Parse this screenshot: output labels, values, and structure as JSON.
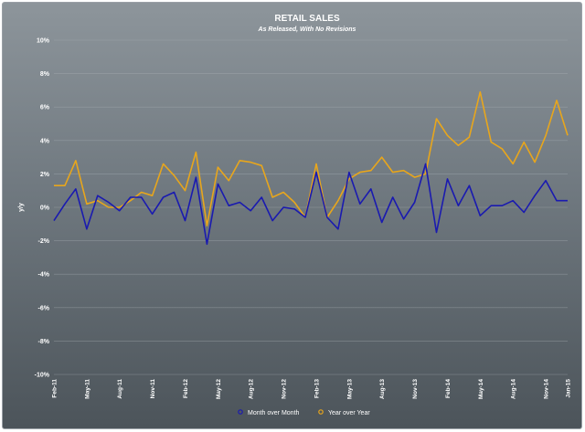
{
  "chart_data": {
    "type": "line",
    "title": "RETAIL SALES",
    "subtitle": "As Released, With No Revisions",
    "ylabel": "y/y",
    "xlabel": "",
    "ylim": [
      -10,
      10
    ],
    "yticks": [
      {
        "value": 10,
        "label": "10%"
      },
      {
        "value": 8,
        "label": "8%"
      },
      {
        "value": 6,
        "label": "6%"
      },
      {
        "value": 4,
        "label": "4%"
      },
      {
        "value": 2,
        "label": "2%"
      },
      {
        "value": 0,
        "label": "0%"
      },
      {
        "value": -2,
        "label": "-2%"
      },
      {
        "value": -4,
        "label": "-4%"
      },
      {
        "value": -6,
        "label": "-6%"
      },
      {
        "value": -8,
        "label": "-8%"
      },
      {
        "value": -10,
        "label": "-10%"
      }
    ],
    "grid": true,
    "legend_position": "bottom",
    "categories": [
      "Feb-11",
      "Mar-11",
      "Apr-11",
      "May-11",
      "Jun-11",
      "Jul-11",
      "Aug-11",
      "Sep-11",
      "Oct-11",
      "Nov-11",
      "Dec-11",
      "Jan-12",
      "Feb-12",
      "Mar-12",
      "Apr-12",
      "May-12",
      "Jun-12",
      "Jul-12",
      "Aug-12",
      "Sep-12",
      "Oct-12",
      "Nov-12",
      "Dec-12",
      "Jan-13",
      "Feb-13",
      "Mar-13",
      "Apr-13",
      "May-13",
      "Jun-13",
      "Jul-13",
      "Aug-13",
      "Sep-13",
      "Oct-13",
      "Nov-13",
      "Dec-13",
      "Jan-14",
      "Feb-14",
      "Mar-14",
      "Apr-14",
      "May-14",
      "Jun-14",
      "Jul-14",
      "Aug-14",
      "Sep-14",
      "Oct-14",
      "Nov-14",
      "Dec-14",
      "Jan-15"
    ],
    "xtick_labels": [
      {
        "index": 0,
        "label": "Feb-11"
      },
      {
        "index": 3,
        "label": "May-11"
      },
      {
        "index": 6,
        "label": "Aug-11"
      },
      {
        "index": 9,
        "label": "Nov-11"
      },
      {
        "index": 12,
        "label": "Feb-12"
      },
      {
        "index": 15,
        "label": "May-12"
      },
      {
        "index": 18,
        "label": "Aug-12"
      },
      {
        "index": 21,
        "label": "Nov-12"
      },
      {
        "index": 24,
        "label": "Feb-13"
      },
      {
        "index": 27,
        "label": "May-13"
      },
      {
        "index": 30,
        "label": "Aug-13"
      },
      {
        "index": 33,
        "label": "Nov-13"
      },
      {
        "index": 36,
        "label": "Feb-14"
      },
      {
        "index": 39,
        "label": "May-14"
      },
      {
        "index": 42,
        "label": "Aug-14"
      },
      {
        "index": 45,
        "label": "Nov-14"
      },
      {
        "index": 47,
        "label": "Jan-15"
      }
    ],
    "series": [
      {
        "name": "Month over Month",
        "color": "#1a1ab0",
        "values": [
          -0.8,
          0.2,
          1.1,
          -1.3,
          0.7,
          0.3,
          -0.2,
          0.6,
          0.6,
          -0.4,
          0.6,
          0.9,
          -0.8,
          1.8,
          -2.2,
          1.4,
          0.1,
          0.3,
          -0.2,
          0.6,
          -0.8,
          0.0,
          -0.1,
          -0.6,
          2.1,
          -0.6,
          -1.3,
          2.1,
          0.2,
          1.1,
          -0.9,
          0.6,
          -0.7,
          0.3,
          2.6,
          -1.5,
          1.7,
          0.1,
          1.3,
          -0.5,
          0.1,
          0.1,
          0.4,
          -0.3,
          0.7,
          1.6,
          0.4,
          0.4
        ]
      },
      {
        "name": "Year over Year",
        "color": "#e8a61c",
        "values": [
          1.3,
          1.3,
          2.8,
          0.2,
          0.4,
          0.0,
          0.0,
          0.4,
          0.9,
          0.7,
          2.6,
          1.9,
          1.0,
          3.3,
          -1.1,
          2.4,
          1.6,
          2.8,
          2.7,
          2.5,
          0.6,
          0.9,
          0.3,
          -0.6,
          2.6,
          -0.6,
          0.4,
          1.7,
          2.1,
          2.2,
          3.0,
          2.1,
          2.2,
          1.8,
          2.0,
          5.3,
          4.3,
          3.7,
          4.2,
          6.9,
          3.9,
          3.5,
          2.6,
          3.9,
          2.7,
          4.3,
          6.4,
          4.3
        ]
      }
    ]
  }
}
